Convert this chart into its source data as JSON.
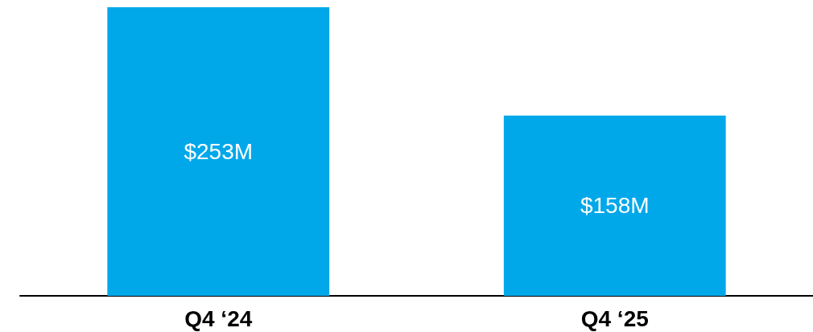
{
  "chart_data": {
    "type": "bar",
    "categories": [
      "Q4 ‘24",
      "Q4 ‘25"
    ],
    "values": [
      253,
      158
    ],
    "value_labels": [
      "$253M",
      "$158M"
    ],
    "color": "#00a8ea",
    "grid": false
  }
}
